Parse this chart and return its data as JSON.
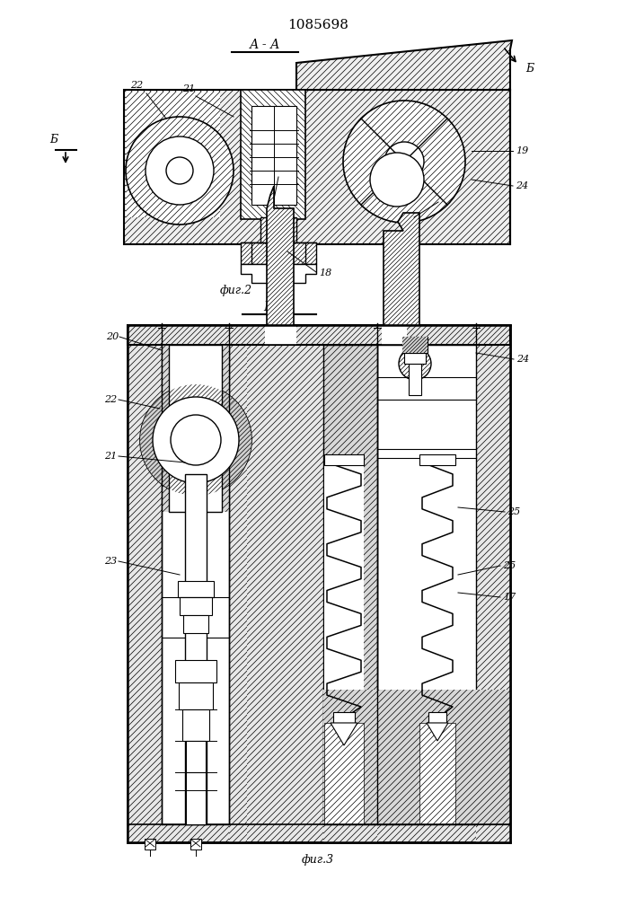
{
  "title": "1085698",
  "fig2_label": "А - А",
  "fig2_caption": "фиг.2",
  "fig3_section": "Б - Б",
  "fig3_caption": "фиг.3",
  "bg_color": "#ffffff",
  "line_color": "#000000"
}
